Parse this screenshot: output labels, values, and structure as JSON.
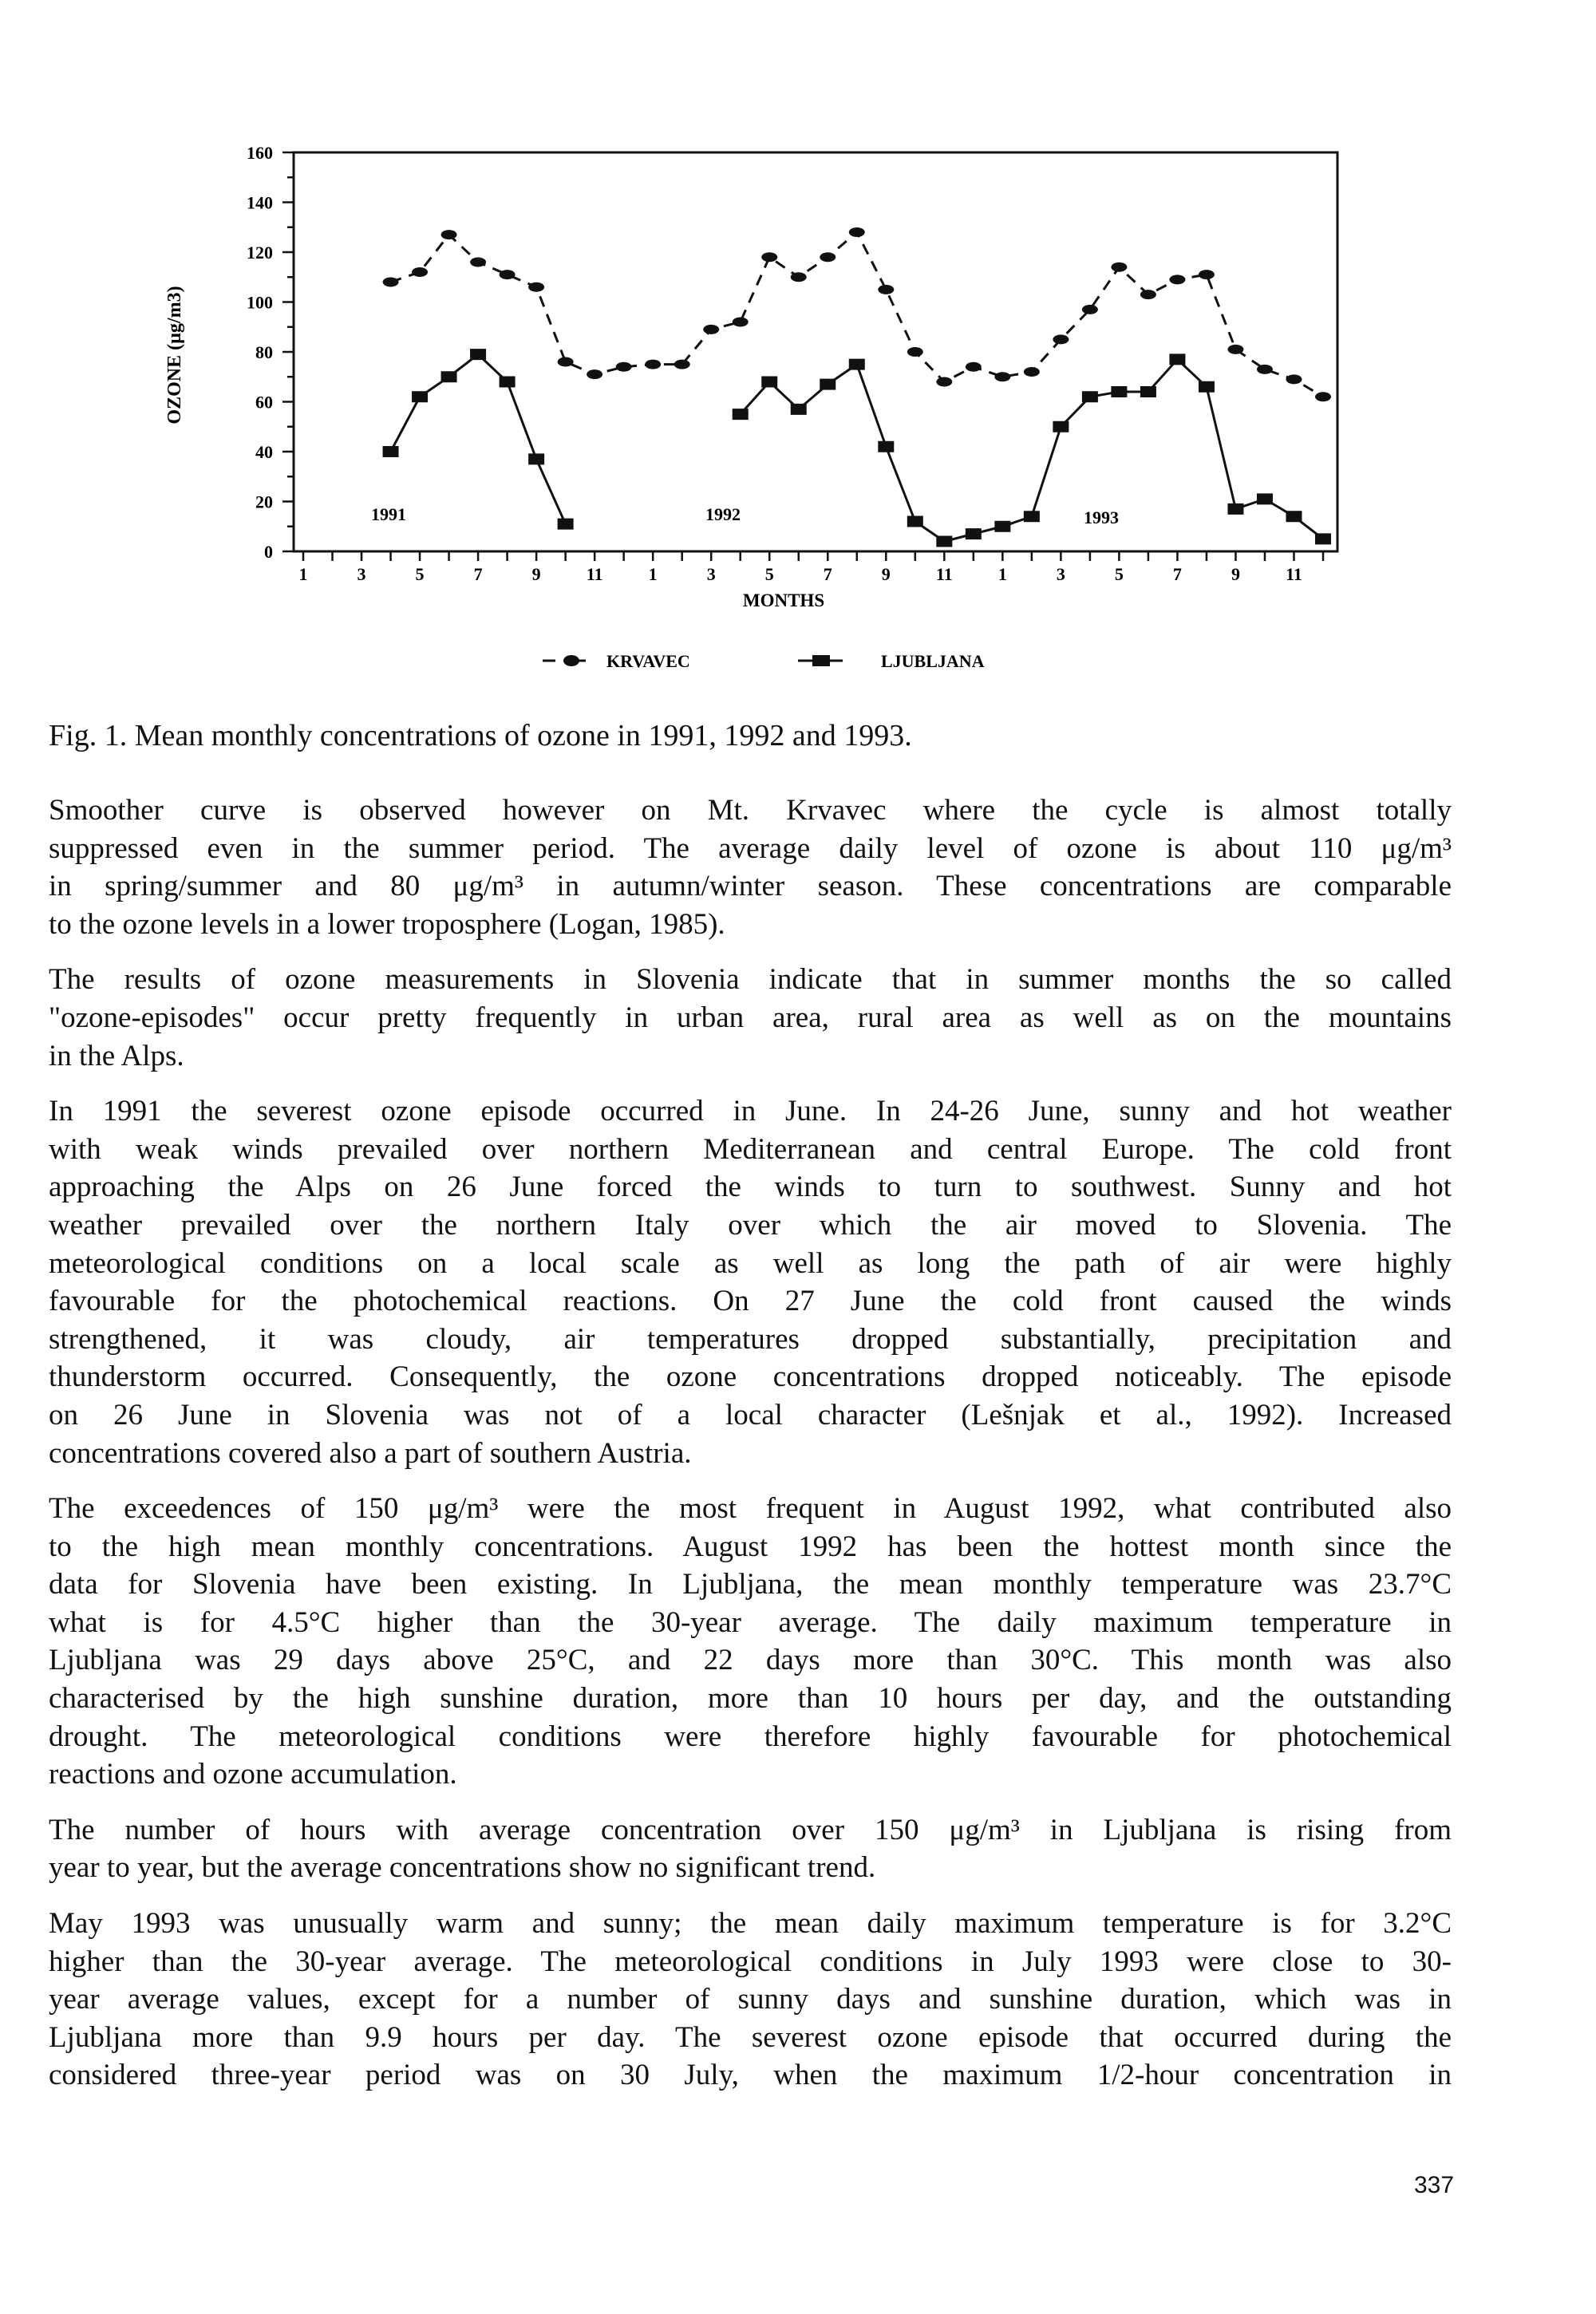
{
  "chart_data": {
    "type": "line",
    "ylabel": "OZONE   (µg/m3)",
    "xlabel": "MONTHS",
    "ylim": [
      0,
      160
    ],
    "yticks": [
      0,
      20,
      40,
      60,
      80,
      100,
      120,
      140,
      160
    ],
    "x_tick_labels": [
      "1",
      "3",
      "5",
      "7",
      "9",
      "11",
      "1",
      "3",
      "5",
      "7",
      "9",
      "11",
      "1",
      "3",
      "5",
      "7",
      "9",
      "11"
    ],
    "years": [
      "1991",
      "1992",
      "1993"
    ],
    "months_per_year": 12,
    "series": [
      {
        "name": "KRVAVEC",
        "style": "dashed",
        "marker": "circle",
        "values": [
          null,
          null,
          null,
          108,
          112,
          127,
          116,
          111,
          106,
          76,
          71,
          74,
          75,
          75,
          89,
          92,
          118,
          110,
          118,
          128,
          105,
          80,
          68,
          74,
          70,
          72,
          85,
          97,
          114,
          103,
          109,
          111,
          81,
          73,
          69,
          62
        ]
      },
      {
        "name": "LJUBLJANA",
        "style": "solid",
        "marker": "square",
        "values": [
          null,
          null,
          null,
          40,
          62,
          70,
          79,
          68,
          37,
          11,
          null,
          null,
          null,
          null,
          null,
          55,
          68,
          57,
          67,
          75,
          42,
          12,
          4,
          7,
          10,
          14,
          50,
          62,
          64,
          64,
          77,
          66,
          17,
          21,
          14,
          5
        ]
      }
    ],
    "grid": false,
    "legend_placement": "bottom-center",
    "color": "#111111"
  },
  "caption": "Fig.  1. Mean monthly concentrations of ozone in 1991, 1992 and 1993.",
  "paragraphs": [
    [
      "Smoother   curve is observed however on Mt. Krvavec where the cycle is almost totally",
      "suppressed even in the summer period. The average daily level of ozone is about 110 μg/m³",
      "in spring/summer and 80 μg/m³ in autumn/winter season. These concentrations are comparable",
      "to the ozone levels in a lower troposphere (Logan, 1985)."
    ],
    [
      "The results of ozone measurements in Slovenia indicate that in summer months the so called",
      "\"ozone-episodes\" occur pretty frequently in urban area, rural area as well as on the mountains",
      "in the Alps."
    ],
    [
      "In 1991 the severest ozone episode occurred in June. In 24-26 June, sunny and hot weather",
      "with weak winds prevailed over northern Mediterranean and central Europe. The cold front",
      "approaching the Alps on 26 June forced the winds to turn to southwest. Sunny and hot",
      "weather prevailed over the northern Italy over which the air moved to Slovenia. The",
      "meteorological conditions on a local scale as well as long the path of air were highly",
      "favourable for the photochemical reactions. On 27 June the cold front caused the winds",
      "strengthened, it was cloudy, air temperatures dropped substantially, precipitation and",
      "thunderstorm occurred. Consequently, the ozone concentrations dropped noticeably. The episode",
      "on 26 June in Slovenia was not of a local character (Lešnjak et al., 1992). Increased",
      "concentrations covered also a part of southern Austria."
    ],
    [
      "The exceedences of 150 μg/m³ were the most frequent in August 1992, what contributed also",
      "to the high mean monthly concentrations. August 1992 has been the hottest month since the",
      "data for Slovenia have been existing. In Ljubljana, the mean monthly temperature was 23.7°C",
      "what is for 4.5°C higher than the 30-year average. The daily maximum temperature in",
      "Ljubljana was 29 days above 25°C, and 22 days more than 30°C. This month was also",
      "characterised by the high sunshine duration, more than 10 hours per day, and the outstanding",
      "drought. The meteorological conditions were therefore highly favourable for photochemical",
      "reactions and ozone accumulation."
    ],
    [
      "The number of hours with average concentration over 150 μg/m³ in Ljubljana is rising from",
      "year to year, but the average concentrations show no significant trend."
    ],
    [
      "May 1993 was unusually warm and sunny; the mean daily maximum temperature is for 3.2°C",
      "higher than the 30-year average. The meteorological conditions in July 1993 were close to 30-",
      "year average values, except for a number of sunny days and sunshine duration, which was in",
      "Ljubljana more than 9.9 hours per day. The severest ozone episode that occurred during the",
      "considered three-year period was on 30 July, when the maximum 1/2-hour concentration in"
    ]
  ],
  "page_number": "337"
}
